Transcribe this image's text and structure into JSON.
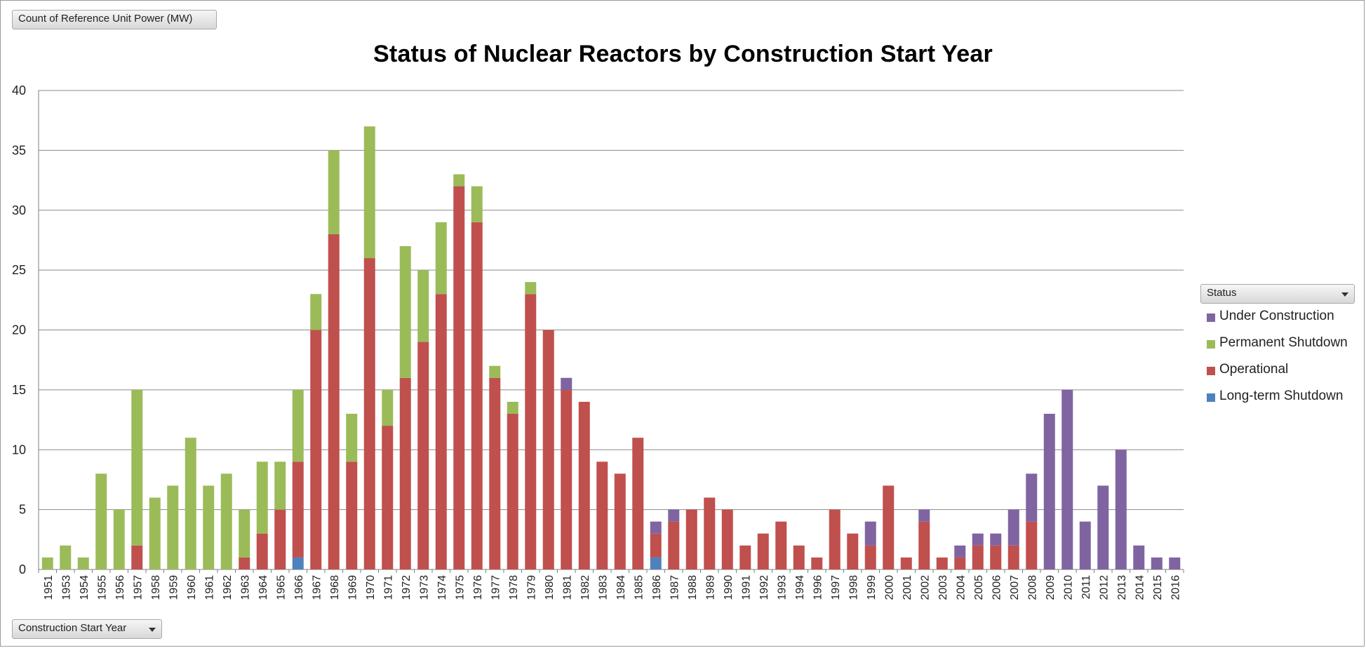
{
  "pivot_buttons": {
    "values_field": "Count of Reference Unit Power (MW)",
    "axis_field": "Construction Start Year",
    "legend_field": "Status"
  },
  "chart_data": {
    "type": "bar",
    "stacked": true,
    "title": "Status of Nuclear Reactors by Construction Start Year",
    "xlabel": "",
    "ylabel": "",
    "ylim": [
      0,
      40
    ],
    "yticks": [
      0,
      5,
      10,
      15,
      20,
      25,
      30,
      35,
      40
    ],
    "grid": true,
    "legend_position": "right",
    "categories": [
      "1951",
      "1953",
      "1954",
      "1955",
      "1956",
      "1957",
      "1958",
      "1959",
      "1960",
      "1961",
      "1962",
      "1963",
      "1964",
      "1965",
      "1966",
      "1967",
      "1968",
      "1969",
      "1970",
      "1971",
      "1972",
      "1973",
      "1974",
      "1975",
      "1976",
      "1977",
      "1978",
      "1979",
      "1980",
      "1981",
      "1982",
      "1983",
      "1984",
      "1985",
      "1986",
      "1987",
      "1988",
      "1989",
      "1990",
      "1991",
      "1992",
      "1993",
      "1994",
      "1996",
      "1997",
      "1998",
      "1999",
      "2000",
      "2001",
      "2002",
      "2003",
      "2004",
      "2005",
      "2006",
      "2007",
      "2008",
      "2009",
      "2010",
      "2011",
      "2012",
      "2013",
      "2014",
      "2015",
      "2016"
    ],
    "series": [
      {
        "name": "Long-term Shutdown",
        "color": "#4f81bd",
        "values": [
          0,
          0,
          0,
          0,
          0,
          0,
          0,
          0,
          0,
          0,
          0,
          0,
          0,
          0,
          1,
          0,
          0,
          0,
          0,
          0,
          0,
          0,
          0,
          0,
          0,
          0,
          0,
          0,
          0,
          0,
          0,
          0,
          0,
          0,
          1,
          0,
          0,
          0,
          0,
          0,
          0,
          0,
          0,
          0,
          0,
          0,
          0,
          0,
          0,
          0,
          0,
          0,
          0,
          0,
          0,
          0,
          0,
          0,
          0,
          0,
          0,
          0,
          0,
          0
        ]
      },
      {
        "name": "Operational",
        "color": "#c0504d",
        "values": [
          0,
          0,
          0,
          0,
          0,
          2,
          0,
          0,
          0,
          0,
          0,
          1,
          3,
          5,
          8,
          20,
          28,
          9,
          26,
          12,
          16,
          19,
          23,
          32,
          29,
          16,
          13,
          23,
          20,
          15,
          14,
          9,
          8,
          11,
          2,
          4,
          5,
          6,
          5,
          2,
          3,
          4,
          2,
          1,
          5,
          3,
          2,
          7,
          1,
          4,
          1,
          1,
          2,
          2,
          2,
          4,
          0,
          0,
          0,
          0,
          0,
          0,
          0,
          0
        ]
      },
      {
        "name": "Permanent Shutdown",
        "color": "#9bbb59",
        "values": [
          1,
          2,
          1,
          8,
          5,
          13,
          6,
          7,
          11,
          7,
          8,
          4,
          6,
          4,
          6,
          3,
          7,
          4,
          11,
          3,
          11,
          6,
          6,
          1,
          3,
          1,
          1,
          1,
          0,
          0,
          0,
          0,
          0,
          0,
          0,
          0,
          0,
          0,
          0,
          0,
          0,
          0,
          0,
          0,
          0,
          0,
          0,
          0,
          0,
          0,
          0,
          0,
          0,
          0,
          0,
          0,
          0,
          0,
          0,
          0,
          0,
          0,
          0,
          0
        ]
      },
      {
        "name": "Under Construction",
        "color": "#8064a2",
        "values": [
          0,
          0,
          0,
          0,
          0,
          0,
          0,
          0,
          0,
          0,
          0,
          0,
          0,
          0,
          0,
          0,
          0,
          0,
          0,
          0,
          0,
          0,
          0,
          0,
          0,
          0,
          0,
          0,
          0,
          1,
          0,
          0,
          0,
          0,
          1,
          1,
          0,
          0,
          0,
          0,
          0,
          0,
          0,
          0,
          0,
          0,
          2,
          0,
          0,
          1,
          0,
          1,
          1,
          1,
          3,
          4,
          13,
          15,
          4,
          7,
          10,
          2,
          1,
          1
        ]
      }
    ],
    "legend_order": [
      "Under Construction",
      "Permanent Shutdown",
      "Operational",
      "Long-term Shutdown"
    ]
  }
}
